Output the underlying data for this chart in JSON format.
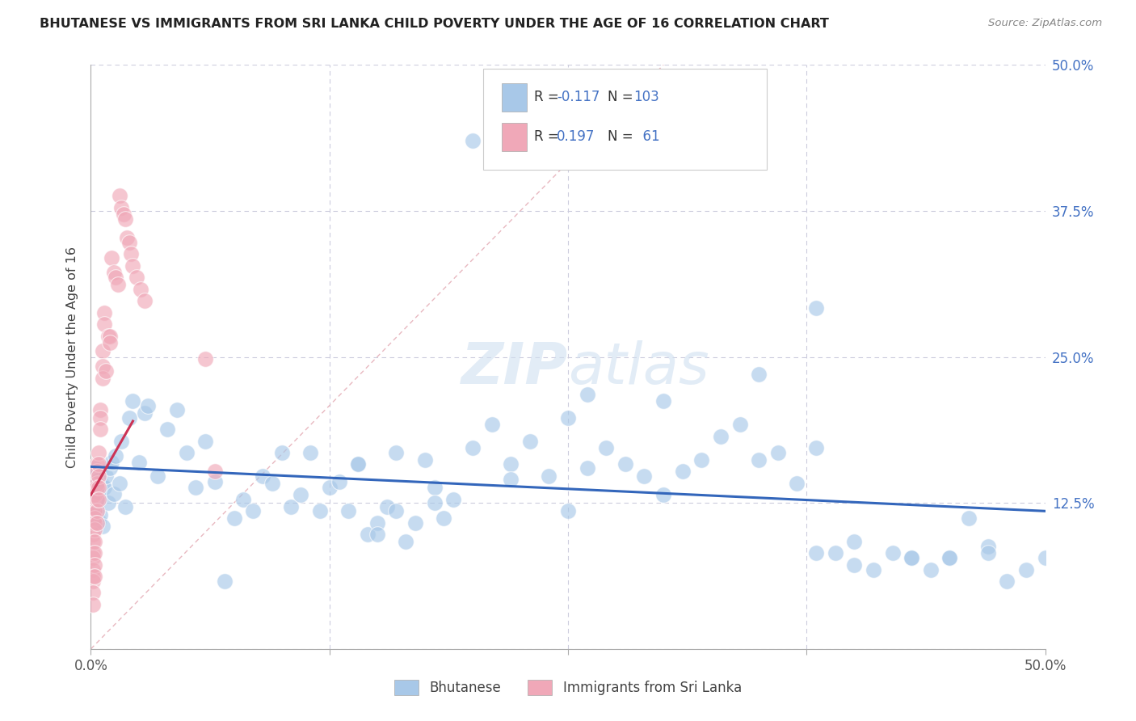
{
  "title": "BHUTANESE VS IMMIGRANTS FROM SRI LANKA CHILD POVERTY UNDER THE AGE OF 16 CORRELATION CHART",
  "source": "Source: ZipAtlas.com",
  "ylabel": "Child Poverty Under the Age of 16",
  "xlim": [
    0,
    0.5
  ],
  "ylim": [
    0,
    0.5
  ],
  "blue_color": "#a8c8e8",
  "pink_color": "#f0a8b8",
  "blue_line_color": "#3366bb",
  "pink_line_color": "#cc3355",
  "diag_line_color": "#e8b8c0",
  "R_blue": -0.117,
  "N_blue": 103,
  "R_pink": 0.197,
  "N_pink": 61,
  "legend_label_blue": "Bhutanese",
  "legend_label_pink": "Immigrants from Sri Lanka",
  "blue_x": [
    0.002,
    0.003,
    0.003,
    0.004,
    0.004,
    0.005,
    0.005,
    0.006,
    0.006,
    0.007,
    0.008,
    0.009,
    0.01,
    0.011,
    0.012,
    0.013,
    0.015,
    0.016,
    0.018,
    0.02,
    0.022,
    0.025,
    0.028,
    0.03,
    0.035,
    0.04,
    0.045,
    0.05,
    0.055,
    0.06,
    0.065,
    0.07,
    0.075,
    0.08,
    0.085,
    0.09,
    0.095,
    0.1,
    0.105,
    0.11,
    0.115,
    0.12,
    0.125,
    0.13,
    0.135,
    0.14,
    0.145,
    0.15,
    0.155,
    0.16,
    0.165,
    0.17,
    0.175,
    0.18,
    0.185,
    0.19,
    0.2,
    0.21,
    0.22,
    0.23,
    0.24,
    0.25,
    0.26,
    0.27,
    0.28,
    0.29,
    0.3,
    0.31,
    0.32,
    0.33,
    0.34,
    0.35,
    0.36,
    0.37,
    0.38,
    0.39,
    0.4,
    0.41,
    0.42,
    0.43,
    0.44,
    0.45,
    0.46,
    0.47,
    0.48,
    0.49,
    0.5,
    0.35,
    0.38,
    0.4,
    0.43,
    0.45,
    0.47,
    0.38,
    0.2,
    0.3,
    0.25,
    0.15,
    0.14,
    0.16,
    0.18,
    0.22,
    0.26
  ],
  "blue_y": [
    0.155,
    0.13,
    0.12,
    0.145,
    0.11,
    0.13,
    0.115,
    0.14,
    0.105,
    0.138,
    0.148,
    0.125,
    0.155,
    0.16,
    0.133,
    0.165,
    0.142,
    0.178,
    0.122,
    0.198,
    0.212,
    0.16,
    0.202,
    0.208,
    0.148,
    0.188,
    0.205,
    0.168,
    0.138,
    0.178,
    0.143,
    0.058,
    0.112,
    0.128,
    0.118,
    0.148,
    0.142,
    0.168,
    0.122,
    0.132,
    0.168,
    0.118,
    0.138,
    0.143,
    0.118,
    0.158,
    0.098,
    0.108,
    0.122,
    0.118,
    0.092,
    0.108,
    0.162,
    0.138,
    0.112,
    0.128,
    0.172,
    0.192,
    0.158,
    0.178,
    0.148,
    0.198,
    0.218,
    0.172,
    0.158,
    0.148,
    0.212,
    0.152,
    0.162,
    0.182,
    0.192,
    0.162,
    0.168,
    0.142,
    0.172,
    0.082,
    0.072,
    0.068,
    0.082,
    0.078,
    0.068,
    0.078,
    0.112,
    0.088,
    0.058,
    0.068,
    0.078,
    0.235,
    0.082,
    0.092,
    0.078,
    0.078,
    0.082,
    0.292,
    0.435,
    0.132,
    0.118,
    0.098,
    0.158,
    0.168,
    0.125,
    0.145,
    0.155
  ],
  "pink_x": [
    0.001,
    0.001,
    0.001,
    0.001,
    0.001,
    0.001,
    0.001,
    0.001,
    0.001,
    0.001,
    0.001,
    0.002,
    0.002,
    0.002,
    0.002,
    0.002,
    0.002,
    0.002,
    0.002,
    0.002,
    0.003,
    0.003,
    0.003,
    0.003,
    0.003,
    0.003,
    0.003,
    0.004,
    0.004,
    0.004,
    0.004,
    0.004,
    0.005,
    0.005,
    0.005,
    0.006,
    0.006,
    0.006,
    0.007,
    0.007,
    0.008,
    0.009,
    0.01,
    0.01,
    0.011,
    0.012,
    0.013,
    0.014,
    0.015,
    0.016,
    0.017,
    0.018,
    0.019,
    0.02,
    0.021,
    0.022,
    0.024,
    0.026,
    0.028,
    0.06,
    0.065
  ],
  "pink_y": [
    0.132,
    0.122,
    0.098,
    0.092,
    0.082,
    0.078,
    0.068,
    0.062,
    0.058,
    0.048,
    0.038,
    0.132,
    0.118,
    0.112,
    0.108,
    0.102,
    0.092,
    0.082,
    0.072,
    0.062,
    0.158,
    0.152,
    0.142,
    0.138,
    0.128,
    0.118,
    0.108,
    0.168,
    0.158,
    0.148,
    0.138,
    0.128,
    0.205,
    0.198,
    0.188,
    0.255,
    0.242,
    0.232,
    0.288,
    0.278,
    0.238,
    0.268,
    0.268,
    0.262,
    0.335,
    0.322,
    0.318,
    0.312,
    0.388,
    0.378,
    0.372,
    0.368,
    0.352,
    0.348,
    0.338,
    0.328,
    0.318,
    0.308,
    0.298,
    0.248,
    0.152
  ]
}
